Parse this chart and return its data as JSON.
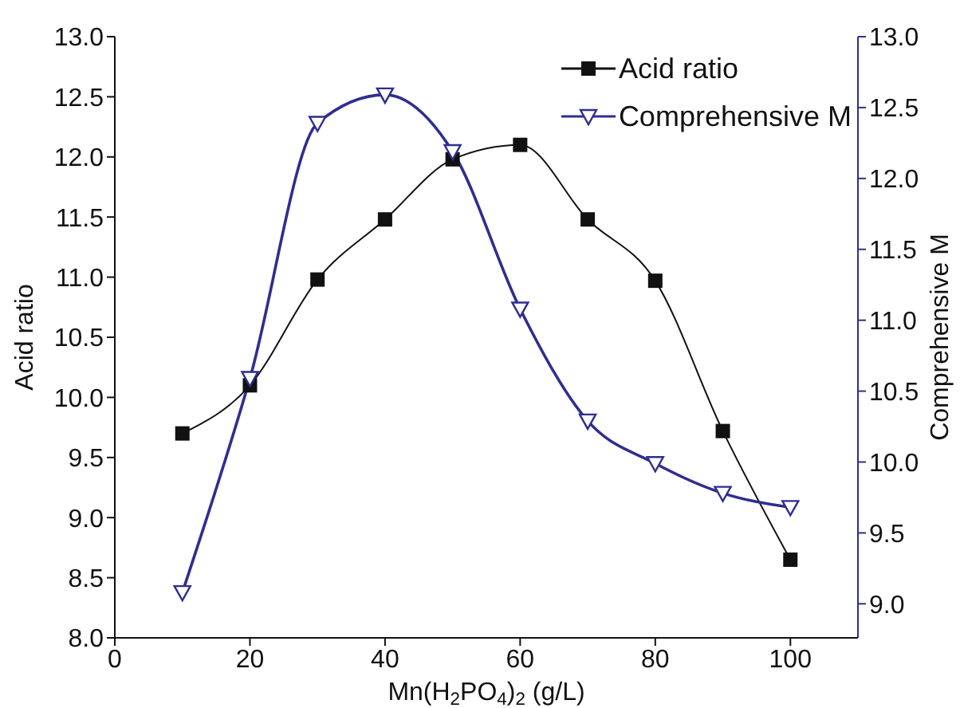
{
  "chart_data": {
    "type": "line",
    "xlabel": "Mn(H$_{2}$PO$_{4}$)$_{2}$ (g/L)",
    "ylabel": "Acid ratio",
    "y2label": "Comprehensive M",
    "x": [
      10,
      20,
      30,
      40,
      50,
      60,
      70,
      80,
      90,
      100
    ],
    "xlim": [
      0,
      110
    ],
    "xticks": [
      0,
      20,
      40,
      60,
      80,
      100
    ],
    "ylim": [
      8,
      13
    ],
    "yticks": [
      {
        "value": 8,
        "label": "8.0"
      },
      8.5,
      {
        "value": 9,
        "label": "9.0"
      },
      9.5,
      {
        "value": 10,
        "label": "10.0"
      },
      10.5,
      {
        "value": 11,
        "label": "11.0"
      },
      11.5,
      {
        "value": 12,
        "label": "12.0"
      },
      12.5,
      {
        "value": 13,
        "label": "13.0"
      }
    ],
    "y2lim": [
      8.76,
      13
    ],
    "y2ticks": [
      {
        "value": 9,
        "label": "9.0"
      },
      9.5,
      {
        "value": 10,
        "label": "10.0"
      },
      10.5,
      {
        "value": 11,
        "label": "11.0"
      },
      11.5,
      {
        "value": 12,
        "label": "12.0"
      },
      12.5,
      {
        "value": 13,
        "label": "13.0"
      }
    ],
    "grid": false,
    "legend": "top right",
    "series": [
      {
        "name": "Acid ratio",
        "color": "#111111",
        "marker": "square",
        "values": [
          9.7,
          10.1,
          10.98,
          11.48,
          11.98,
          12.1,
          11.48,
          10.97,
          9.72,
          8.65
        ]
      },
      {
        "name": "Comprehensive M",
        "color": "#2e2e8f",
        "marker": "triangle",
        "axis": "y2",
        "values": [
          9.08,
          10.59,
          12.39,
          12.59,
          12.19,
          11.08,
          10.29,
          9.99,
          9.78,
          9.68
        ]
      }
    ]
  }
}
